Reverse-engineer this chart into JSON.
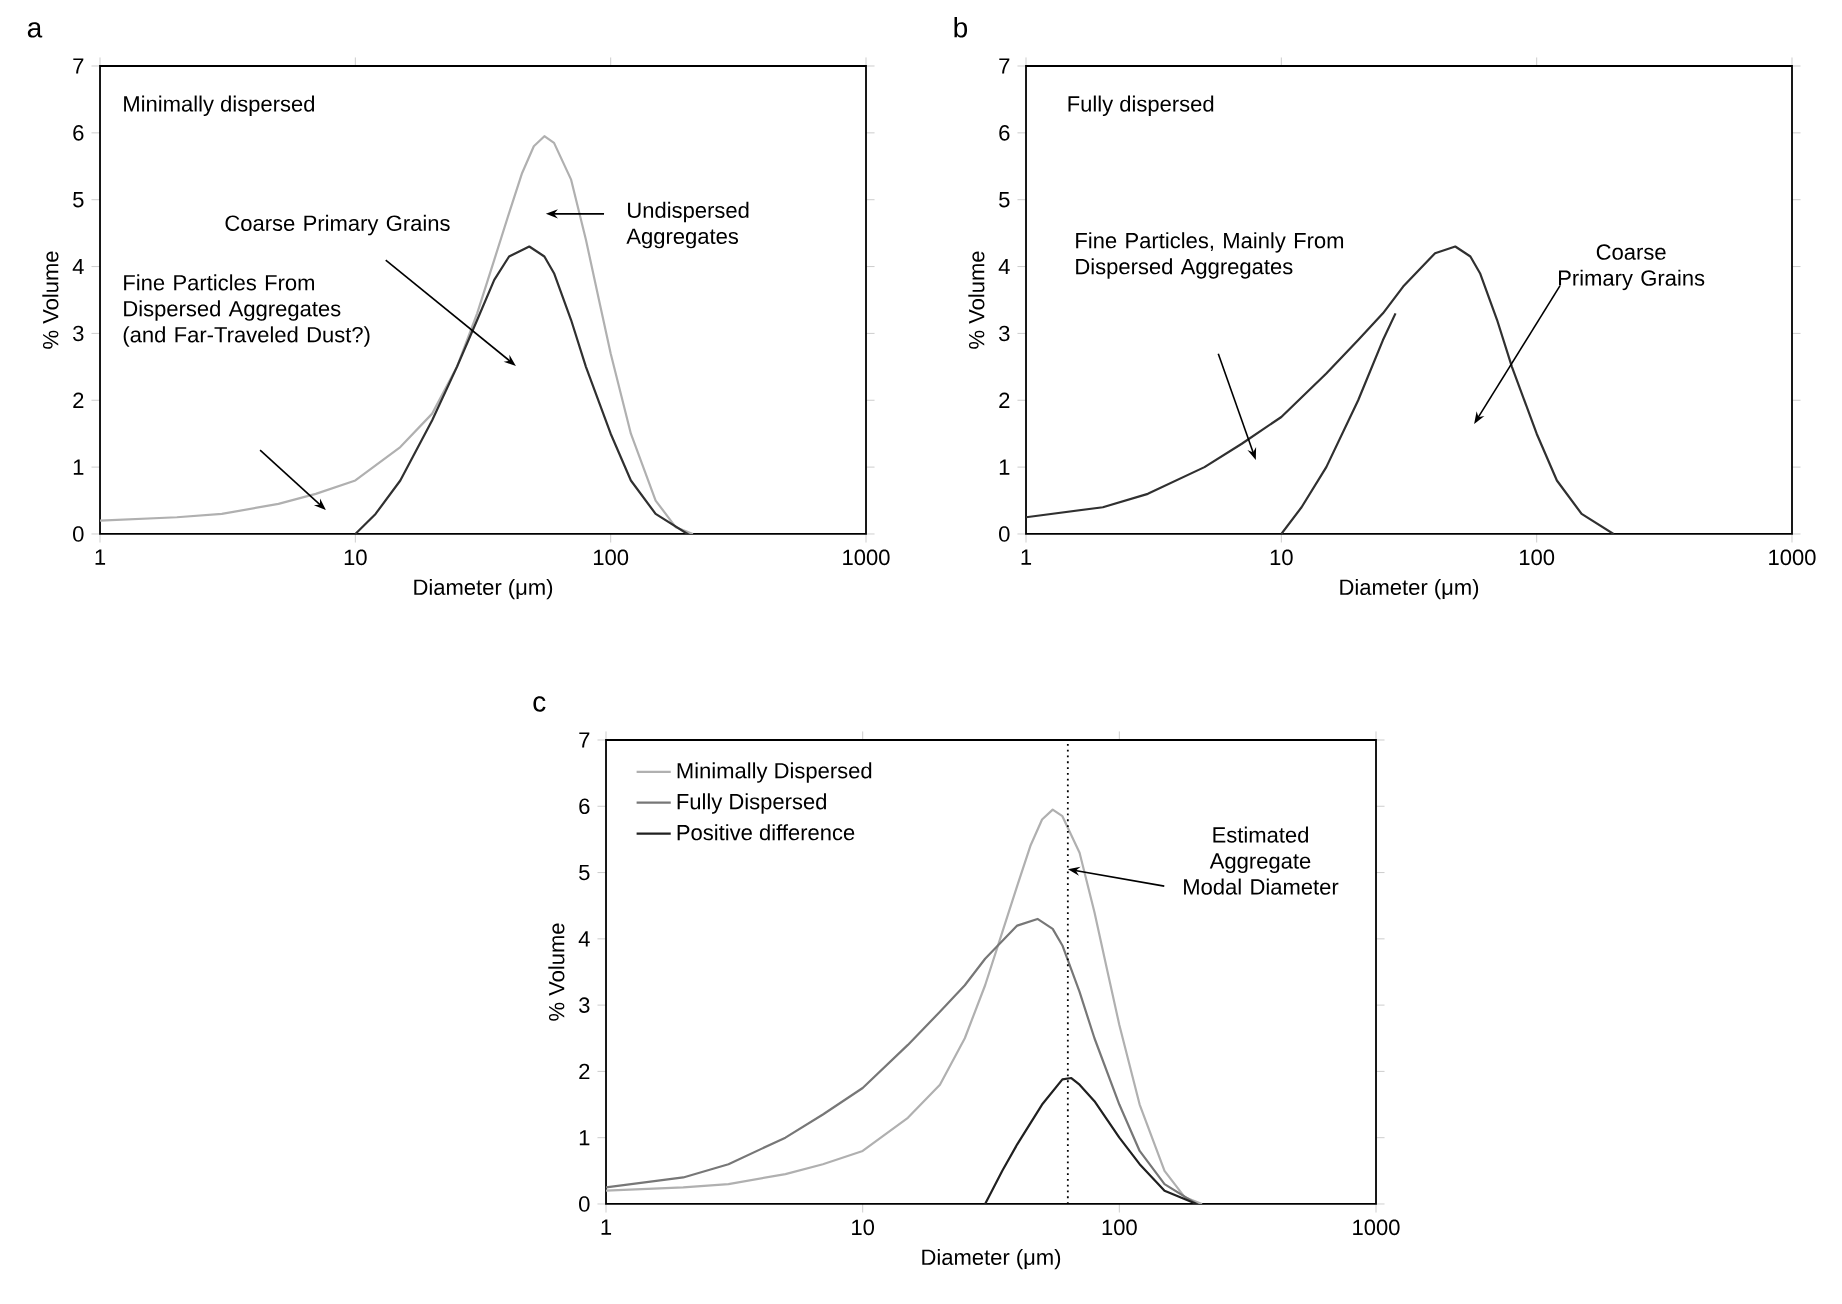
{
  "chart_data": [
    {
      "type": "line",
      "title": "a",
      "xlabel": "Diameter (μm)",
      "ylabel": "% Volume",
      "log": "x",
      "xlim": [
        1,
        1000
      ],
      "xticks": [
        1,
        10,
        100,
        1000
      ],
      "ylim": [
        0,
        7
      ],
      "yticks": [
        0,
        1,
        2,
        3,
        4,
        5,
        6,
        7
      ],
      "series": [
        {
          "color": "#b0b0b0",
          "x": [
            1,
            2,
            3,
            5,
            7,
            10,
            15,
            20,
            25,
            30,
            35,
            40,
            45,
            50,
            55,
            60,
            70,
            80,
            90,
            100,
            120,
            150,
            180,
            210
          ],
          "values": [
            0.2,
            0.25,
            0.3,
            0.45,
            0.6,
            0.8,
            1.3,
            1.8,
            2.5,
            3.3,
            4.1,
            4.8,
            5.4,
            5.8,
            5.95,
            5.85,
            5.3,
            4.4,
            3.5,
            2.7,
            1.5,
            0.5,
            0.1,
            0
          ]
        },
        {
          "color": "#303030",
          "x": [
            10,
            12,
            15,
            20,
            25,
            30,
            35,
            40,
            48,
            55,
            60,
            70,
            80,
            100,
            120,
            150,
            200
          ],
          "values": [
            0,
            0.3,
            0.8,
            1.7,
            2.5,
            3.2,
            3.8,
            4.15,
            4.3,
            4.15,
            3.9,
            3.2,
            2.5,
            1.5,
            0.8,
            0.3,
            0
          ]
        }
      ],
      "annotations": [
        "Minimally dispersed",
        "Coarse Primary Grains",
        "Undispersed Aggregates",
        "Fine Particles From Dispersed Aggregates (and Far-Traveled Dust?)"
      ]
    },
    {
      "type": "line",
      "title": "b",
      "xlabel": "Diameter (μm)",
      "ylabel": "% Volume",
      "log": "x",
      "xlim": [
        1,
        1000
      ],
      "xticks": [
        1,
        10,
        100,
        1000
      ],
      "ylim": [
        0,
        7
      ],
      "yticks": [
        0,
        1,
        2,
        3,
        4,
        5,
        6,
        7
      ],
      "series": [
        {
          "color": "#303030",
          "x": [
            1,
            2,
            3,
            5,
            7,
            10,
            15,
            20,
            25,
            30,
            40,
            48,
            55,
            60,
            70,
            80,
            100,
            120,
            150,
            200
          ],
          "values": [
            0.25,
            0.4,
            0.6,
            1.0,
            1.35,
            1.75,
            2.4,
            2.9,
            3.3,
            3.7,
            4.2,
            4.3,
            4.15,
            3.9,
            3.2,
            2.5,
            1.5,
            0.8,
            0.3,
            0
          ]
        },
        {
          "color": "#303030",
          "x": [
            10,
            12,
            15,
            20,
            25,
            28
          ],
          "values": [
            0,
            0.4,
            1.0,
            2.0,
            2.9,
            3.3
          ]
        }
      ],
      "annotations": [
        "Fully dispersed",
        "Fine Particles, Mainly From Dispersed Aggregates",
        "Coarse Primary Grains"
      ]
    },
    {
      "type": "line",
      "title": "c",
      "xlabel": "Diameter (μm)",
      "ylabel": "% Volume",
      "log": "x",
      "xlim": [
        1,
        1000
      ],
      "xticks": [
        1,
        10,
        100,
        1000
      ],
      "ylim": [
        0,
        7
      ],
      "yticks": [
        0,
        1,
        2,
        3,
        4,
        5,
        6,
        7
      ],
      "legend": "top left",
      "series": [
        {
          "name": "Minimally Dispersed",
          "color": "#b0b0b0",
          "x": [
            1,
            2,
            3,
            5,
            7,
            10,
            15,
            20,
            25,
            30,
            35,
            40,
            45,
            50,
            55,
            60,
            70,
            80,
            90,
            100,
            120,
            150,
            180,
            210
          ],
          "values": [
            0.2,
            0.25,
            0.3,
            0.45,
            0.6,
            0.8,
            1.3,
            1.8,
            2.5,
            3.3,
            4.1,
            4.8,
            5.4,
            5.8,
            5.95,
            5.85,
            5.3,
            4.4,
            3.5,
            2.7,
            1.5,
            0.5,
            0.1,
            0
          ]
        },
        {
          "name": "Fully Dispersed",
          "color": "#777777",
          "x": [
            1,
            2,
            3,
            5,
            7,
            10,
            15,
            20,
            25,
            30,
            40,
            48,
            55,
            60,
            70,
            80,
            100,
            120,
            150,
            200
          ],
          "values": [
            0.25,
            0.4,
            0.6,
            1.0,
            1.35,
            1.75,
            2.4,
            2.9,
            3.3,
            3.7,
            4.2,
            4.3,
            4.15,
            3.9,
            3.2,
            2.5,
            1.5,
            0.8,
            0.3,
            0
          ]
        },
        {
          "name": "Positive difference",
          "color": "#202020",
          "x": [
            30,
            35,
            40,
            50,
            60,
            65,
            70,
            80,
            100,
            120,
            150,
            200
          ],
          "values": [
            0,
            0.5,
            0.9,
            1.5,
            1.88,
            1.9,
            1.8,
            1.55,
            1.0,
            0.6,
            0.2,
            0
          ]
        }
      ],
      "ref_lines": [
        {
          "axis": "x",
          "value": 63,
          "color": "#000000",
          "line_style": "dotted"
        }
      ],
      "annotations": [
        {
          "text": "Estimated Aggregate Modal Diameter",
          "x": 63,
          "y": 5.05
        }
      ]
    }
  ]
}
